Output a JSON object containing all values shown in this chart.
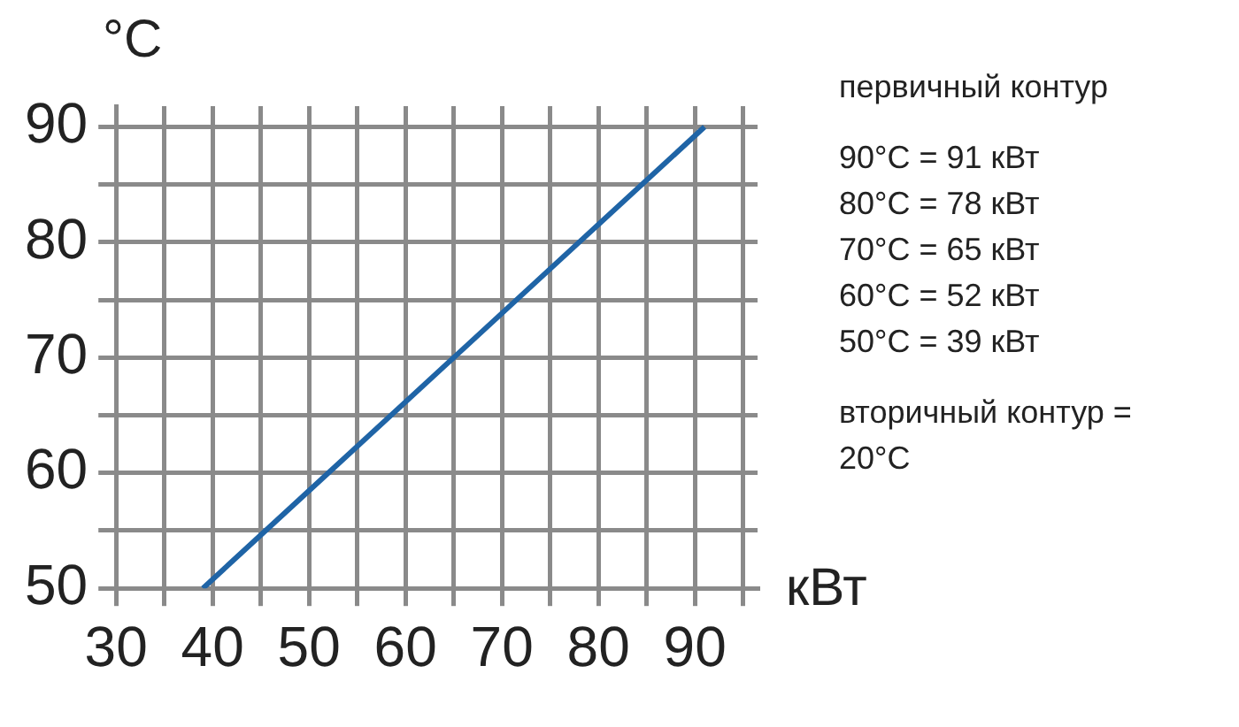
{
  "chart_data": {
    "type": "line",
    "xlabel": "кВт",
    "ylabel": "°C",
    "x": [
      39,
      52,
      65,
      78,
      91
    ],
    "series": [
      {
        "color": "#1f64a6",
        "values": [
          50,
          60,
          70,
          80,
          90
        ]
      }
    ],
    "xlim": [
      30,
      96.5
    ],
    "ylim": [
      50,
      91.8
    ],
    "xticks": [
      30,
      {
        "value": 35,
        "label": null
      },
      40,
      {
        "value": 45,
        "label": null
      },
      50,
      {
        "value": 55,
        "label": null
      },
      60,
      {
        "value": 65,
        "label": null
      },
      70,
      {
        "value": 75,
        "label": null
      },
      80,
      {
        "value": 85,
        "label": null
      },
      90,
      {
        "value": 95,
        "label": null
      }
    ],
    "yticks": [
      50,
      {
        "value": 55,
        "label": null
      },
      60,
      {
        "value": 65,
        "label": null
      },
      70,
      {
        "value": 75,
        "label": null
      },
      80,
      {
        "value": 85,
        "label": null
      },
      90
    ],
    "grid": true,
    "legend": false,
    "marker": "none",
    "line_style": "solid",
    "annotations": [
      "первичный контур",
      "90°C = 91 кВт",
      "80°C = 78 кВт",
      "70°C = 65 кВт",
      "60°C = 52 кВт",
      "50°C = 39 кВт",
      "вторичный контур = 20°C"
    ]
  }
}
